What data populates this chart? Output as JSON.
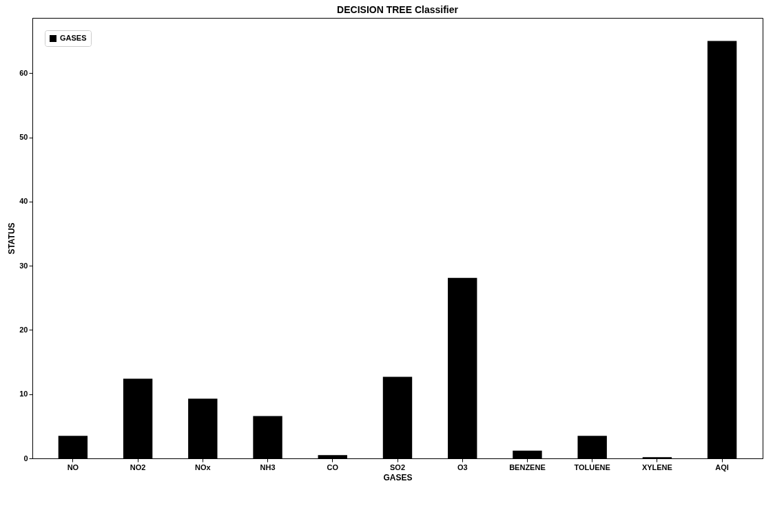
{
  "chart_data": {
    "type": "bar",
    "title": "DECISION TREE Classifier",
    "xlabel": "GASES",
    "ylabel": "STATUS",
    "categories": [
      "NO",
      "NO2",
      "NOx",
      "NH3",
      "CO",
      "SO2",
      "O3",
      "BENZENE",
      "TOLUENE",
      "XYLENE",
      "AQI"
    ],
    "series": [
      {
        "name": "GASES",
        "color": "#000000",
        "values": [
          3.5,
          12.4,
          9.3,
          6.6,
          0.5,
          12.7,
          28.1,
          1.2,
          3.5,
          0.2,
          65.0
        ]
      }
    ],
    "ylim": [
      0,
      68.6
    ],
    "yticks": [
      0,
      10,
      20,
      30,
      40,
      50,
      60
    ],
    "grid": false,
    "legend": "top left"
  }
}
